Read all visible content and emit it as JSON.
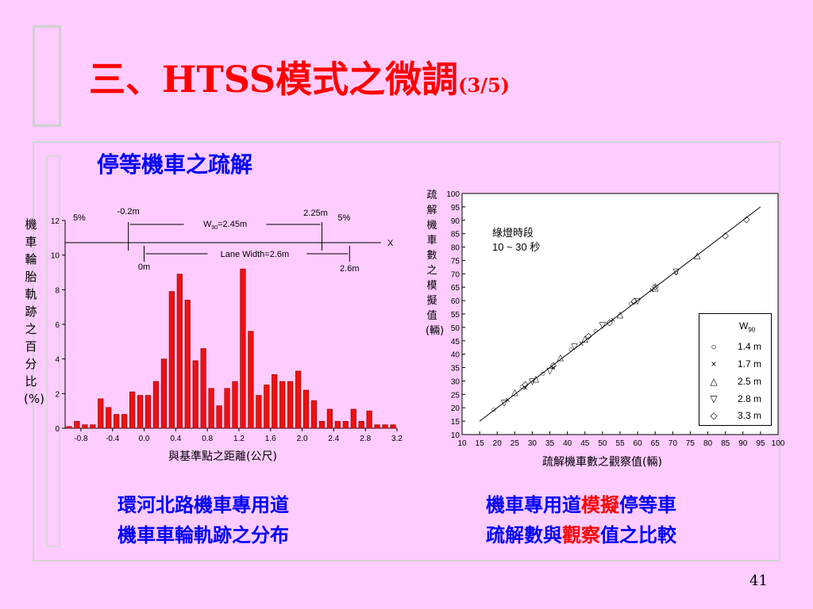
{
  "slide": {
    "title_main": "三、HTSS模式之微調",
    "title_sub": "(3/5)",
    "subtitle": "停等機車之疏解",
    "page_number": "41",
    "left_caption_line1": "環河北路機車專用道",
    "left_caption_line2": "機車車輪軌跡之分布",
    "right_caption_a": "機車專用道",
    "right_caption_b": "模擬",
    "right_caption_c": "停等車",
    "right_caption_d": "疏解數與",
    "right_caption_e": "觀察",
    "right_caption_f": "值之比較",
    "title_color": "#ff0000",
    "text_color": "#0000ff",
    "background": "#ffccff"
  },
  "chart_data": [
    {
      "type": "bar",
      "ylabel": "機車輪胎軌跡之百分比(%)",
      "xlabel": "與基準點之距離(公尺)",
      "xlim": [
        -1.0,
        3.2
      ],
      "ylim": [
        0,
        12
      ],
      "x_ticks": [
        "-0.8",
        "-0.4",
        "0.0",
        "0.4",
        "0.8",
        "1.2",
        "1.6",
        "2.0",
        "2.4",
        "2.8",
        "3.2"
      ],
      "y_ticks": [
        "0",
        "2",
        "4",
        "6",
        "8",
        "10",
        "12"
      ],
      "bar_color": "#ee1111",
      "x": [
        -1.0,
        -0.9,
        -0.8,
        -0.7,
        -0.6,
        -0.5,
        -0.4,
        -0.3,
        -0.2,
        -0.1,
        0.0,
        0.1,
        0.2,
        0.3,
        0.4,
        0.5,
        0.6,
        0.7,
        0.8,
        0.9,
        1.0,
        1.1,
        1.2,
        1.3,
        1.4,
        1.5,
        1.6,
        1.7,
        1.8,
        1.9,
        2.0,
        2.1,
        2.2,
        2.3,
        2.4,
        2.5,
        2.6,
        2.7,
        2.8,
        2.9,
        3.0,
        3.1
      ],
      "values": [
        0.1,
        0.4,
        0.2,
        0.2,
        1.7,
        1.2,
        0.8,
        0.8,
        2.1,
        1.9,
        1.9,
        2.7,
        4.0,
        7.9,
        8.9,
        7.4,
        3.9,
        4.6,
        2.3,
        1.3,
        2.3,
        2.7,
        9.2,
        5.6,
        1.9,
        2.5,
        3.1,
        2.7,
        2.7,
        3.3,
        2.2,
        1.6,
        0.4,
        1.1,
        0.4,
        0.4,
        1.1,
        0.4,
        1.0,
        0.2,
        0.2,
        0.2
      ],
      "annotations": {
        "pct_left": "5%",
        "pct_right": "5%",
        "left_edge": "-0.2m",
        "right_edge": "2.25m",
        "w90": "W",
        "w90_sub": "90",
        "w90_value": "=2.45m",
        "axis_x": "X",
        "lane_width": "Lane Width=2.6m",
        "zero": "0m",
        "lane_end": "2.6m"
      }
    },
    {
      "type": "scatter",
      "ylabel": "疏解機車數之模擬值(輛)",
      "xlabel": "疏解機車數之觀察值(輛)",
      "xlim": [
        10,
        100
      ],
      "ylim": [
        10,
        100
      ],
      "x_ticks": [
        "10",
        "15",
        "20",
        "25",
        "30",
        "35",
        "40",
        "45",
        "50",
        "55",
        "60",
        "65",
        "70",
        "75",
        "80",
        "85",
        "90",
        "95",
        "100"
      ],
      "y_ticks": [
        "10",
        "15",
        "20",
        "25",
        "30",
        "35",
        "40",
        "45",
        "50",
        "55",
        "60",
        "65",
        "70",
        "75",
        "80",
        "85",
        "90",
        "95",
        "100"
      ],
      "annotation_line1": "綠燈時段",
      "annotation_line2": "10 ~ 30 秒",
      "legend_title": "W",
      "legend_title_sub": "90",
      "fit_line": [
        [
          15,
          15
        ],
        [
          95,
          95
        ]
      ],
      "series": [
        {
          "name": "1.4 m",
          "marker": "○",
          "points": [
            [
              19,
              19.5
            ],
            [
              27,
              28
            ],
            [
              33,
              33
            ],
            [
              41,
              42
            ],
            [
              48,
              49
            ],
            [
              58,
              59
            ],
            [
              71,
              70.5
            ]
          ]
        },
        {
          "name": "1.7 m",
          "marker": "×",
          "points": [
            [
              23,
              23
            ],
            [
              28,
              27.5
            ],
            [
              36,
              35
            ],
            [
              44,
              44
            ],
            [
              53,
              53
            ],
            [
              64,
              64
            ]
          ]
        },
        {
          "name": "2.5 m",
          "marker": "△",
          "points": [
            [
              25,
              26
            ],
            [
              31,
              31
            ],
            [
              38,
              39
            ],
            [
              45,
              46
            ],
            [
              55,
              55
            ],
            [
              65,
              65
            ],
            [
              77,
              77
            ]
          ]
        },
        {
          "name": "2.8 m",
          "marker": "▽",
          "points": [
            [
              22,
              22
            ],
            [
              30,
              30
            ],
            [
              35,
              34
            ],
            [
              42,
              43
            ],
            [
              50,
              51
            ],
            [
              60,
              60
            ],
            [
              71,
              71
            ]
          ]
        },
        {
          "name": "3.3 m",
          "marker": "◇",
          "points": [
            [
              28,
              29
            ],
            [
              36,
              36
            ],
            [
              46,
              47
            ],
            [
              52,
              52
            ],
            [
              59,
              60
            ],
            [
              65,
              65.5
            ],
            [
              85,
              84.5
            ],
            [
              91,
              90.5
            ]
          ]
        }
      ]
    }
  ]
}
